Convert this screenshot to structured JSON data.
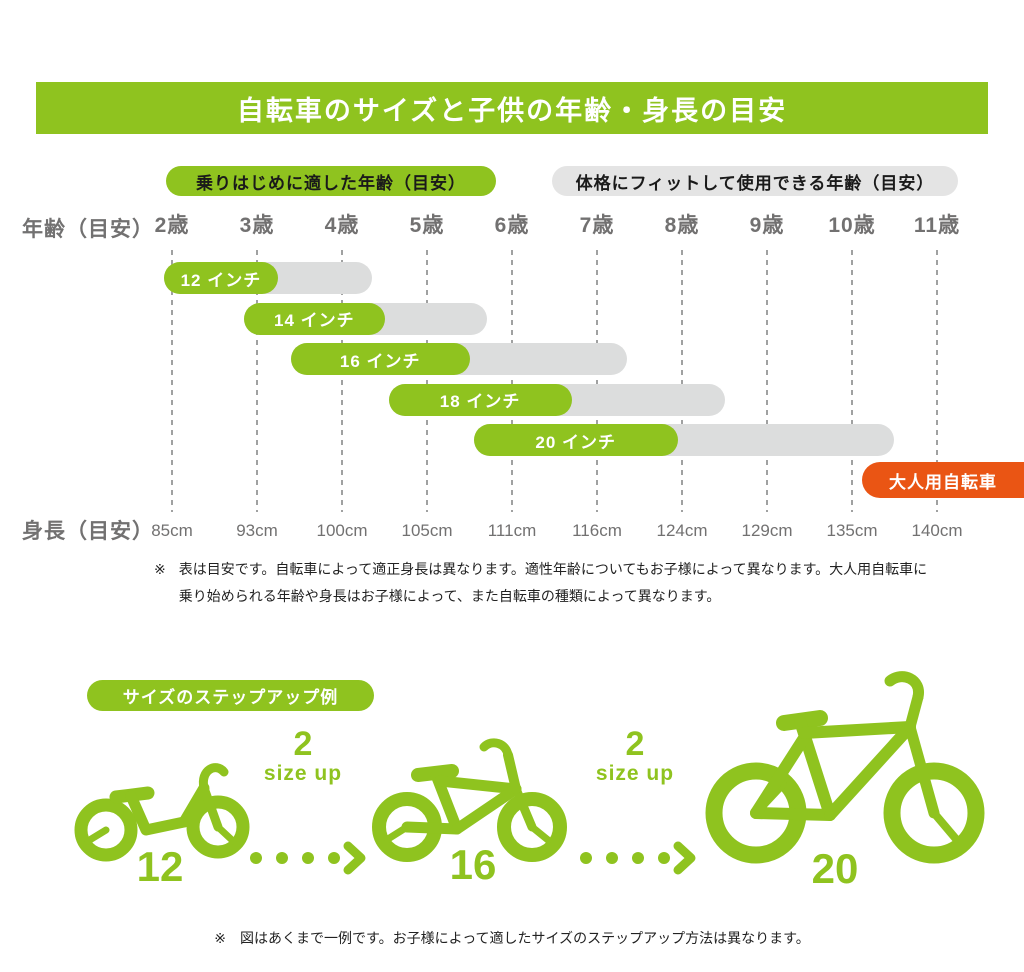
{
  "chart_data": {
    "type": "bar",
    "title": "自転車のサイズと子供の年齢・身長の目安",
    "legend": {
      "green": "乗りはじめに適した年齢（目安）",
      "gray": "体格にフィットして使用できる年齢（目安）"
    },
    "age_axis": {
      "label": "年齢（目安）",
      "values": [
        2,
        3,
        4,
        5,
        6,
        7,
        8,
        9,
        10,
        11
      ],
      "tick_labels": [
        "2歳",
        "3歳",
        "4歳",
        "5歳",
        "6歳",
        "7歳",
        "8歳",
        "9歳",
        "10歳",
        "11歳"
      ]
    },
    "height_axis": {
      "label": "身長（目安）",
      "tick_labels": [
        "85cm",
        "93cm",
        "100cm",
        "105cm",
        "111cm",
        "116cm",
        "124cm",
        "129cm",
        "135cm",
        "140cm"
      ]
    },
    "series": [
      {
        "label": "12 インチ",
        "start_range": [
          1.9,
          3.25
        ],
        "fit_range": [
          1.9,
          4.35
        ]
      },
      {
        "label": "14 インチ",
        "start_range": [
          2.85,
          4.5
        ],
        "fit_range": [
          2.85,
          5.7
        ]
      },
      {
        "label": "16 インチ",
        "start_range": [
          3.4,
          5.5
        ],
        "fit_range": [
          3.4,
          7.35
        ]
      },
      {
        "label": "18 インチ",
        "start_range": [
          4.55,
          6.7
        ],
        "fit_range": [
          4.55,
          8.5
        ]
      },
      {
        "label": "20 インチ",
        "start_range": [
          5.55,
          7.95
        ],
        "fit_range": [
          5.55,
          10.5
        ]
      }
    ],
    "adult_bike_label": "大人用自転車",
    "grid": true,
    "colors": {
      "green": "#8fc31f",
      "gray_bar": "#dcdddd",
      "orange": "#ea5514",
      "axis_text": "#727171"
    }
  },
  "notes": {
    "chart": {
      "marker": "※",
      "line1": "表は目安です。自転車によって適正身長は異なります。適性年齢についてもお子様によって異なります。大人用自転車に",
      "line2": "乗り始められる年齢や身長はお子様によって、また自転車の種類によって異なります。"
    },
    "stepup": {
      "marker": "※",
      "text": "図はあくまで一例です。お子様によって適したサイズのステップアップ方法は異なります。"
    }
  },
  "stepup": {
    "title": "サイズのステップアップ例",
    "bikes": [
      {
        "size": "12"
      },
      {
        "size": "16"
      },
      {
        "size": "20"
      }
    ],
    "size_up": {
      "line1": "2",
      "line2": "size up"
    }
  }
}
